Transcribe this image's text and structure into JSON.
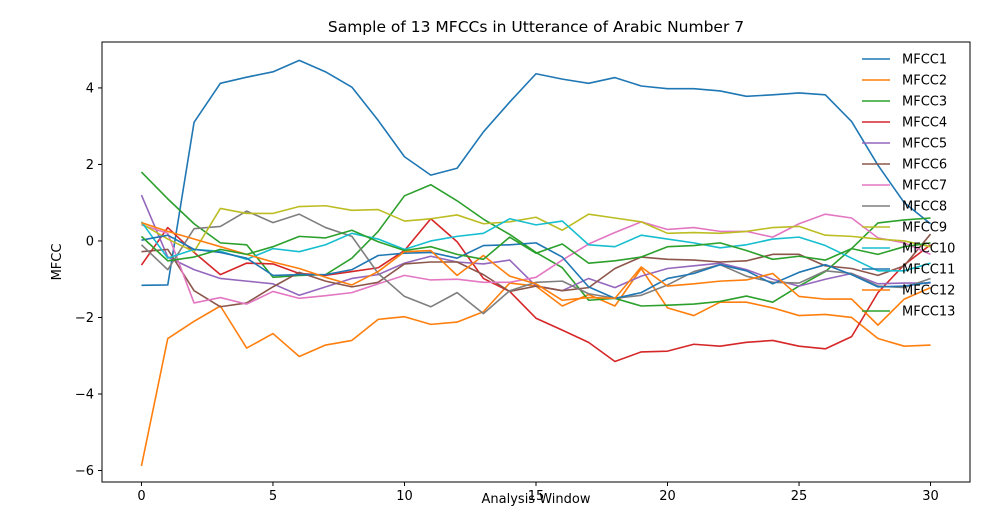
{
  "chart_data": {
    "type": "line",
    "title": "Sample of 13 MFCCs in Utterance of Arabic Number 7",
    "xlabel": "Analysis Window",
    "ylabel": "MFCC",
    "xlim": [
      -1.5,
      31.5
    ],
    "ylim": [
      -6.3,
      5.2
    ],
    "xticks": [
      0,
      5,
      10,
      15,
      20,
      25,
      30
    ],
    "yticks": [
      -6,
      -4,
      -2,
      0,
      2,
      4
    ],
    "grid": false,
    "legend_position": "top-right",
    "x": [
      0,
      1,
      2,
      3,
      4,
      5,
      6,
      7,
      8,
      9,
      10,
      11,
      12,
      13,
      14,
      15,
      16,
      17,
      18,
      19,
      20,
      21,
      22,
      23,
      24,
      25,
      26,
      27,
      28,
      29,
      30
    ],
    "series": [
      {
        "name": "MFCC1",
        "color": "#1f77b4",
        "values": [
          -1.16,
          -1.15,
          3.1,
          4.12,
          4.28,
          4.42,
          4.72,
          4.42,
          4.02,
          3.15,
          2.2,
          1.72,
          1.9,
          2.85,
          3.63,
          4.37,
          4.23,
          4.12,
          4.27,
          4.05,
          3.98,
          3.98,
          3.92,
          3.78,
          3.82,
          3.87,
          3.82,
          3.12,
          1.98,
          1.0,
          0.45
        ]
      },
      {
        "name": "MFCC2",
        "color": "#ff7f0e",
        "values": [
          -5.88,
          -2.55,
          -2.1,
          -1.7,
          -2.8,
          -2.42,
          -3.02,
          -2.72,
          -2.6,
          -2.05,
          -1.98,
          -2.18,
          -2.12,
          -1.85,
          -1.1,
          -1.18,
          -1.7,
          -1.4,
          -1.7,
          -0.72,
          -1.75,
          -1.95,
          -1.6,
          -1.6,
          -1.75,
          -1.95,
          -1.92,
          -2.0,
          -2.55,
          -2.75,
          -2.72
        ]
      },
      {
        "name": "MFCC3",
        "color": "#2ca02c",
        "values": [
          1.8,
          1.1,
          0.45,
          -0.05,
          -0.1,
          -0.95,
          -0.9,
          -0.88,
          -0.45,
          0.25,
          1.18,
          1.47,
          1.05,
          0.57,
          0.17,
          -0.3,
          -0.7,
          -1.55,
          -1.5,
          -1.7,
          -1.68,
          -1.65,
          -1.58,
          -1.44,
          -1.6,
          -1.18,
          -0.8,
          -0.2,
          0.47,
          0.55,
          0.6
        ]
      },
      {
        "name": "MFCC4",
        "color": "#d62728",
        "values": [
          -0.63,
          0.35,
          -0.3,
          -0.88,
          -0.58,
          -0.6,
          -0.85,
          -0.9,
          -0.8,
          -0.7,
          -0.25,
          0.58,
          -0.02,
          -0.98,
          -1.32,
          -2.02,
          -2.33,
          -2.65,
          -3.15,
          -2.9,
          -2.88,
          -2.7,
          -2.75,
          -2.65,
          -2.6,
          -2.75,
          -2.82,
          -2.5,
          -1.35,
          -0.62,
          -0.1
        ]
      },
      {
        "name": "MFCC5",
        "color": "#9467bd",
        "values": [
          1.2,
          -0.42,
          -0.75,
          -0.98,
          -1.05,
          -1.12,
          -1.42,
          -1.2,
          -0.98,
          -0.88,
          -0.58,
          -0.4,
          -0.55,
          -0.6,
          -0.5,
          -1.18,
          -1.3,
          -0.98,
          -1.22,
          -0.92,
          -0.72,
          -0.65,
          -0.58,
          -0.75,
          -1.0,
          -1.18,
          -1.0,
          -0.85,
          -1.12,
          -1.1,
          -1.1
        ]
      },
      {
        "name": "MFCC6",
        "color": "#8c564b",
        "values": [
          -0.28,
          -0.22,
          -1.3,
          -1.72,
          -1.62,
          -1.2,
          -0.82,
          -1.05,
          -1.2,
          -1.08,
          -0.6,
          -0.55,
          -0.55,
          -0.88,
          -1.32,
          -1.18,
          -1.3,
          -1.22,
          -0.72,
          -0.42,
          -0.48,
          -0.5,
          -0.55,
          -0.52,
          -0.35,
          -0.35,
          -0.65,
          -0.72,
          -0.9,
          -0.65,
          0.18
        ]
      },
      {
        "name": "MFCC7",
        "color": "#e377c2",
        "values": [
          0.42,
          0.2,
          -1.62,
          -1.48,
          -1.65,
          -1.32,
          -1.5,
          -1.43,
          -1.35,
          -1.12,
          -0.9,
          -1.02,
          -1.0,
          -1.08,
          -1.08,
          -0.95,
          -0.5,
          -0.08,
          0.22,
          0.5,
          0.3,
          0.35,
          0.25,
          0.25,
          0.1,
          0.45,
          0.7,
          0.6,
          0.08,
          -0.05,
          -0.35
        ]
      },
      {
        "name": "MFCC8",
        "color": "#7f7f7f",
        "values": [
          -0.1,
          -0.75,
          0.32,
          0.38,
          0.78,
          0.48,
          0.7,
          0.35,
          0.12,
          -0.85,
          -1.45,
          -1.72,
          -1.35,
          -1.9,
          -1.3,
          -1.08,
          -1.05,
          -1.38,
          -1.5,
          -1.42,
          -1.15,
          -0.8,
          -0.62,
          -0.92,
          -1.08,
          -1.1,
          -0.78,
          -0.85,
          -1.18,
          -1.22,
          -0.98
        ]
      },
      {
        "name": "MFCC9",
        "color": "#bcbd22",
        "values": [
          0.45,
          0.05,
          -0.28,
          0.85,
          0.72,
          0.72,
          0.9,
          0.92,
          0.8,
          0.82,
          0.52,
          0.58,
          0.68,
          0.45,
          0.5,
          0.62,
          0.28,
          0.7,
          0.6,
          0.5,
          0.2,
          0.22,
          0.2,
          0.25,
          0.35,
          0.38,
          0.15,
          0.12,
          0.05,
          0.0,
          -0.15
        ]
      },
      {
        "name": "MFCC10",
        "color": "#17becf",
        "values": [
          0.5,
          -0.45,
          -0.22,
          -0.27,
          -0.48,
          -0.2,
          -0.28,
          -0.1,
          0.2,
          0.05,
          -0.22,
          0.0,
          0.12,
          0.2,
          0.58,
          0.42,
          0.52,
          -0.1,
          -0.15,
          0.15,
          0.05,
          -0.05,
          -0.18,
          -0.1,
          0.05,
          0.1,
          -0.12,
          -0.45,
          -0.78,
          -0.78,
          -0.58
        ]
      },
      {
        "name": "MFCC11",
        "color": "#1f77b4",
        "values": [
          0.02,
          0.15,
          -0.22,
          -0.3,
          -0.45,
          -0.9,
          -0.88,
          -0.88,
          -0.75,
          -0.38,
          -0.32,
          -0.3,
          -0.45,
          -0.12,
          -0.1,
          -0.05,
          -0.42,
          -1.2,
          -1.5,
          -1.35,
          -0.98,
          -0.85,
          -0.62,
          -0.78,
          -1.12,
          -0.82,
          -0.62,
          -0.88,
          -1.2,
          -1.18,
          -1.08
        ]
      },
      {
        "name": "MFCC12",
        "color": "#ff7f0e",
        "values": [
          0.48,
          0.25,
          0.05,
          -0.15,
          -0.35,
          -0.55,
          -0.72,
          -0.95,
          -1.15,
          -0.8,
          -0.28,
          -0.25,
          -0.9,
          -0.38,
          -0.92,
          -1.12,
          -1.55,
          -1.48,
          -1.5,
          -0.68,
          -1.18,
          -1.12,
          -1.05,
          -1.02,
          -0.85,
          -1.45,
          -1.52,
          -1.52,
          -2.2,
          -1.52,
          -1.22
        ]
      },
      {
        "name": "MFCC13",
        "color": "#2ca02c",
        "values": [
          0.12,
          -0.52,
          -0.42,
          -0.22,
          -0.35,
          -0.15,
          0.12,
          0.08,
          0.28,
          -0.02,
          -0.25,
          -0.15,
          -0.35,
          -0.48,
          0.1,
          -0.32,
          -0.08,
          -0.58,
          -0.52,
          -0.42,
          -0.15,
          -0.12,
          -0.05,
          -0.25,
          -0.48,
          -0.4,
          -0.5,
          -0.2,
          -0.35,
          -0.15,
          -0.05
        ]
      }
    ]
  }
}
